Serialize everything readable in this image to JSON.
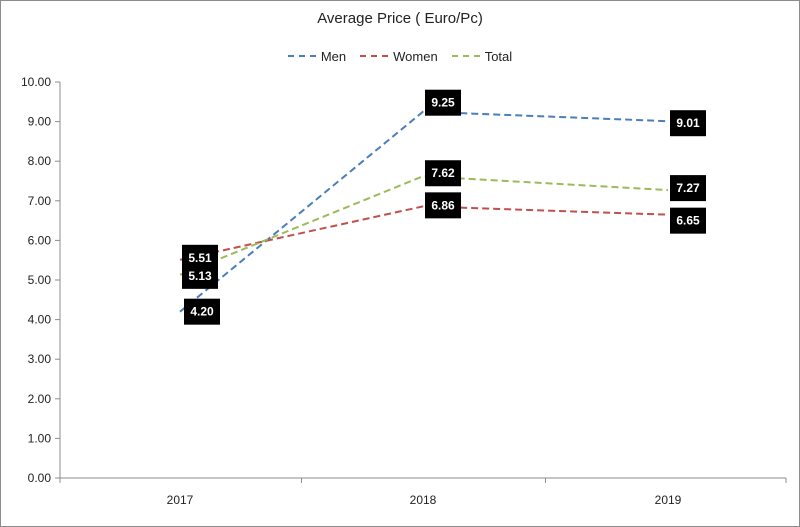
{
  "chart_data": {
    "type": "line",
    "title": "Average Price ( Euro/Pc)",
    "categories": [
      "2017",
      "2018",
      "2019"
    ],
    "series": [
      {
        "name": "Men",
        "values": [
          4.2,
          9.25,
          9.01
        ],
        "color": "#4a7ebb",
        "labels": [
          "4.20",
          "9.25",
          "9.01"
        ]
      },
      {
        "name": "Women",
        "values": [
          5.51,
          6.86,
          6.65
        ],
        "color": "#c0504d",
        "labels": [
          "5.51",
          "6.86",
          "6.65"
        ]
      },
      {
        "name": "Total",
        "values": [
          5.13,
          7.62,
          7.27
        ],
        "color": "#9bbb59",
        "labels": [
          "5.13",
          "7.62",
          "7.27"
        ]
      }
    ],
    "ylim": [
      0,
      10
    ],
    "yticks": [
      "0.00",
      "1.00",
      "2.00",
      "3.00",
      "4.00",
      "5.00",
      "6.00",
      "7.00",
      "8.00",
      "9.00",
      "10.00"
    ],
    "legend_position": "top",
    "line_style": "dashed",
    "data_label_style": "white text on black box"
  }
}
